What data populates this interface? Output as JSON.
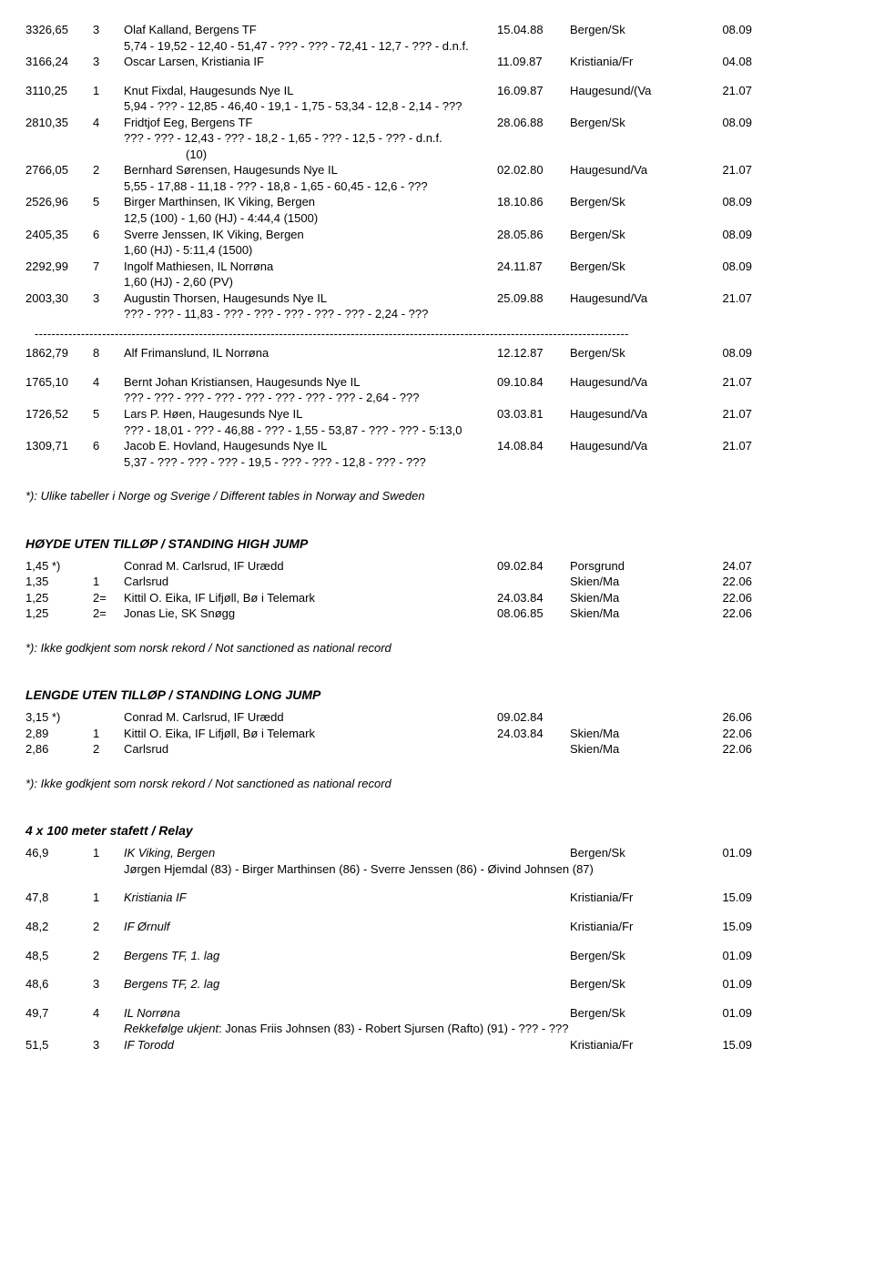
{
  "block1": [
    {
      "score": "3326,65",
      "pl": "3",
      "name": "Olaf Kalland, Bergens TF",
      "date": "15.04.88",
      "place": "Bergen/Sk",
      "r": "08.09",
      "subs": [
        "5,74 - 19,52 - 12,40 - 51,47 - ??? - ??? - 72,41 - 12,7 - ??? - d.n.f."
      ]
    },
    {
      "score": "3166,24",
      "pl": "3",
      "name": "Oscar Larsen, Kristiania IF",
      "date": "11.09.87",
      "place": "Kristiania/Fr",
      "r": "04.08",
      "subs": []
    }
  ],
  "block2": [
    {
      "score": "3110,25",
      "pl": "1",
      "name": "Knut Fixdal, Haugesunds Nye IL",
      "date": "16.09.87",
      "place": "Haugesund/(Va",
      "r": "21.07",
      "subs": [
        "5,94 - ??? - 12,85 - 46,40 - 19,1 - 1,75 - 53,34 - 12,8 - 2,14 - ???"
      ]
    },
    {
      "score": "2810,35",
      "pl": "4",
      "name": "Fridtjof Eeg, Bergens TF",
      "date": "28.06.88",
      "place": "Bergen/Sk",
      "r": "08.09",
      "subs": [
        "??? - ??? - 12,43 - ??? - 18,2 - 1,65 - ??? - 12,5 - ??? - d.n.f."
      ],
      "center": "(10)"
    },
    {
      "score": "2766,05",
      "pl": "2",
      "name": "Bernhard Sørensen, Haugesunds Nye IL",
      "date": "02.02.80",
      "place": "Haugesund/Va",
      "r": "21.07",
      "subs": [
        "5,55 - 17,88 - 11,18 - ??? - 18,8 - 1,65 - 60,45 - 12,6 - ???"
      ]
    },
    {
      "score": "2526,96",
      "pl": "5",
      "name": "Birger Marthinsen, IK Viking, Bergen",
      "date": "18.10.86",
      "place": "Bergen/Sk",
      "r": "08.09",
      "subs": [
        "12,5 (100) - 1,60 (HJ) - 4:44,4 (1500)"
      ]
    },
    {
      "score": "2405,35",
      "pl": "6",
      "name": "Sverre Jenssen, IK Viking, Bergen",
      "date": "28.05.86",
      "place": "Bergen/Sk",
      "r": "08.09",
      "subs": [
        "1,60 (HJ) - 5:11,4 (1500)"
      ]
    },
    {
      "score": "2292,99",
      "pl": "7",
      "name": "Ingolf Mathiesen, IL Norrøna",
      "date": "24.11.87",
      "place": "Bergen/Sk",
      "r": "08.09",
      "subs": [
        "1,60 (HJ) - 2,60 (PV)"
      ]
    },
    {
      "score": "2003,30",
      "pl": "3",
      "name": "Augustin Thorsen, Haugesunds Nye IL",
      "date": "25.09.88",
      "place": "Haugesund/Va",
      "r": "21.07",
      "subs": [
        "??? - ??? - 11,83 - ??? - ??? - ??? - ??? - ??? - 2,24 - ???"
      ]
    }
  ],
  "block3": [
    {
      "score": "1862,79",
      "pl": "8",
      "name": "Alf Frimanslund, IL Norrøna",
      "date": "12.12.87",
      "place": "Bergen/Sk",
      "r": "08.09",
      "subs": []
    }
  ],
  "block4": [
    {
      "score": "1765,10",
      "pl": "4",
      "name": "Bernt Johan Kristiansen, Haugesunds Nye IL",
      "date": "09.10.84",
      "place": "Haugesund/Va",
      "r": "21.07",
      "subs": [
        "??? - ??? - ??? - ??? - ??? - ??? - ??? - ??? - 2,64 - ???"
      ]
    },
    {
      "score": "1726,52",
      "pl": "5",
      "name": "Lars P. Høen, Haugesunds Nye IL",
      "date": "03.03.81",
      "place": "Haugesund/Va",
      "r": "21.07",
      "subs": [
        "??? - 18,01 - ??? - 46,88 - ??? - 1,55 - 53,87 - ??? - ??? - 5:13,0"
      ]
    },
    {
      "score": "1309,71",
      "pl": "6",
      "name": "Jacob E. Hovland, Haugesunds Nye IL",
      "date": "14.08.84",
      "place": "Haugesund/Va",
      "r": "21.07",
      "subs": [
        "5,37 - ??? - ??? - ??? - 19,5 - ??? - ??? - 12,8 - ??? - ???"
      ]
    }
  ],
  "note_tables": "*): Ulike tabeller i Norge og Sverige / Different tables in Norway and Sweden",
  "hj_title": "HØYDE UTEN TILLØP / STANDING HIGH JUMP",
  "hj_rows": [
    {
      "score": "1,45 *)",
      "pl": "",
      "name": "Conrad M. Carlsrud, IF Urædd",
      "date": "09.02.84",
      "place": "Porsgrund",
      "r": "24.07"
    },
    {
      "score": "1,35",
      "pl": "1",
      "name": "Carlsrud",
      "date": "",
      "place": "Skien/Ma",
      "r": "22.06"
    },
    {
      "score": "1,25",
      "pl": "2=",
      "name": "Kittil O. Eika, IF Lifjøll, Bø i Telemark",
      "date": "24.03.84",
      "place": "Skien/Ma",
      "r": "22.06"
    },
    {
      "score": "1,25",
      "pl": "2=",
      "name": "Jonas Lie, SK Snøgg",
      "date": "08.06.85",
      "place": "Skien/Ma",
      "r": "22.06"
    }
  ],
  "note_rec": "*): Ikke godkjent som norsk rekord / Not sanctioned as national record",
  "lj_title": "LENGDE UTEN TILLØP / STANDING LONG JUMP",
  "lj_rows": [
    {
      "score": "3,15 *)",
      "pl": "",
      "name": "Conrad M. Carlsrud, IF Urædd",
      "date": "09.02.84",
      "place": "",
      "r": "26.06"
    },
    {
      "score": "2,89",
      "pl": "1",
      "name": "Kittil O. Eika, IF Lifjøll, Bø i Telemark",
      "date": "24.03.84",
      "place": "Skien/Ma",
      "r": "22.06"
    },
    {
      "score": "2,86",
      "pl": "2",
      "name": "Carlsrud",
      "date": "",
      "place": "Skien/Ma",
      "r": "22.06"
    }
  ],
  "relay_title": "4 x 100 meter stafett / Relay",
  "relay": [
    {
      "score": "46,9",
      "pl": "1",
      "name": "IK Viking, Bergen",
      "place": "Bergen/Sk",
      "r": "01.09",
      "sub": "Jørgen Hjemdal (83) - Birger Marthinsen (86) - Sverre Jenssen (86) - Øivind Johnsen (87)",
      "gap": false
    },
    {
      "score": "47,8",
      "pl": "1",
      "name": "Kristiania IF",
      "place": "Kristiania/Fr",
      "r": "15.09",
      "gap": true
    },
    {
      "score": "48,2",
      "pl": "2",
      "name": "IF Ørnulf",
      "place": "Kristiania/Fr",
      "r": "15.09",
      "gap": true
    },
    {
      "score": "48,5",
      "pl": "2",
      "name": "Bergens TF, 1. lag",
      "place": "Bergen/Sk",
      "r": "01.09",
      "gap": true
    },
    {
      "score": "48,6",
      "pl": "3",
      "name": "Bergens TF, 2. lag",
      "place": "Bergen/Sk",
      "r": "01.09",
      "gap": true
    },
    {
      "score": "49,7",
      "pl": "4",
      "name": "IL Norrøna",
      "place": "Bergen/Sk",
      "r": "01.09",
      "sub_label": "Rekkefølge ukjent",
      "sub_rest": ": Jonas Friis Johnsen (83) - Robert Sjursen (Rafto) (91) - ??? - ???",
      "gap": true
    },
    {
      "score": "51,5",
      "pl": "3",
      "name": "IF Torodd",
      "place": "Kristiania/Fr",
      "r": "15.09",
      "gap": false
    }
  ],
  "dash": " ---------------------------------------------------------------------------------------------------------------------------------------------"
}
